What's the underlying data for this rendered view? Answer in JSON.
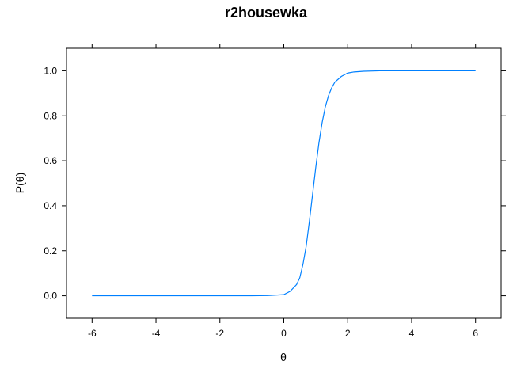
{
  "chart_data": {
    "type": "line",
    "title": "r2housewka",
    "xlabel": "θ",
    "ylabel": "P(θ)",
    "xlim": [
      -6.8,
      6.8
    ],
    "ylim": [
      -0.1,
      1.1
    ],
    "xticks": [
      -6,
      -4,
      -2,
      0,
      2,
      4,
      6
    ],
    "xtick_labels": [
      "-6",
      "-4",
      "-2",
      "0",
      "2",
      "4",
      "6"
    ],
    "yticks": [
      0,
      0.2,
      0.4,
      0.6,
      0.8,
      1.0
    ],
    "ytick_labels": [
      "0.0",
      "0.2",
      "0.4",
      "0.6",
      "0.8",
      "1.0"
    ],
    "grid": false,
    "legend": "none",
    "line_color": "#0080ff",
    "series": [
      {
        "x": [
          -6,
          -5,
          -4,
          -3,
          -2,
          -1,
          -0.5,
          0,
          0.2,
          0.4,
          0.5,
          0.6,
          0.7,
          0.8,
          0.9,
          1.0,
          1.1,
          1.2,
          1.3,
          1.4,
          1.5,
          1.6,
          1.8,
          2.0,
          2.2,
          2.5,
          3,
          4,
          5,
          6
        ],
        "y": [
          0,
          0,
          0,
          0,
          0,
          0,
          0.001,
          0.005,
          0.02,
          0.05,
          0.08,
          0.14,
          0.22,
          0.33,
          0.45,
          0.57,
          0.68,
          0.77,
          0.84,
          0.89,
          0.925,
          0.95,
          0.975,
          0.99,
          0.995,
          0.998,
          1.0,
          1.0,
          1.0,
          1.0
        ]
      }
    ]
  }
}
